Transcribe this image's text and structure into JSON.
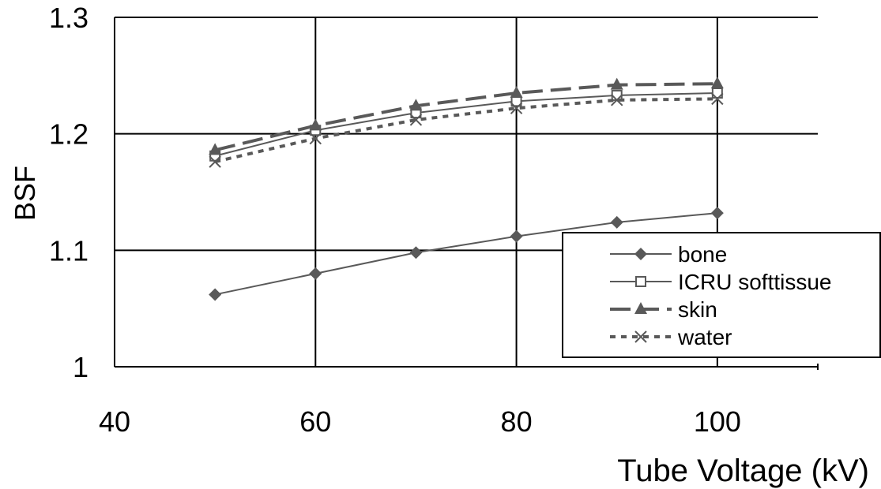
{
  "chart_data": {
    "type": "line",
    "title": "",
    "xlabel": "Tube Voltage (kV)",
    "ylabel": "BSF",
    "xlim": [
      40,
      110
    ],
    "ylim": [
      1.0,
      1.3
    ],
    "x_ticks": [
      40,
      60,
      80,
      100
    ],
    "x_tick_labels": [
      "40",
      "60",
      "80",
      "100"
    ],
    "y_ticks": [
      1.0,
      1.1,
      1.2,
      1.3
    ],
    "y_tick_labels": [
      "1",
      "1.1",
      "1.2",
      "1.3"
    ],
    "grid": true,
    "legend_position": "right",
    "x": [
      50,
      60,
      70,
      80,
      90,
      100
    ],
    "series": [
      {
        "name": "bone",
        "values": [
          1.062,
          1.08,
          1.098,
          1.112,
          1.124,
          1.132
        ],
        "marker": "diamond",
        "line_style": "solid",
        "color": "#595959"
      },
      {
        "name": "ICRU softtissue",
        "values": [
          1.181,
          1.203,
          1.218,
          1.228,
          1.233,
          1.235
        ],
        "marker": "square-open",
        "line_style": "solid",
        "color": "#595959"
      },
      {
        "name": "skin",
        "values": [
          1.186,
          1.207,
          1.224,
          1.235,
          1.242,
          1.243
        ],
        "marker": "triangle",
        "line_style": "long-dash",
        "color": "#595959"
      },
      {
        "name": "water",
        "values": [
          1.176,
          1.196,
          1.212,
          1.222,
          1.229,
          1.23
        ],
        "marker": "x",
        "line_style": "dotted",
        "color": "#595959"
      }
    ]
  }
}
